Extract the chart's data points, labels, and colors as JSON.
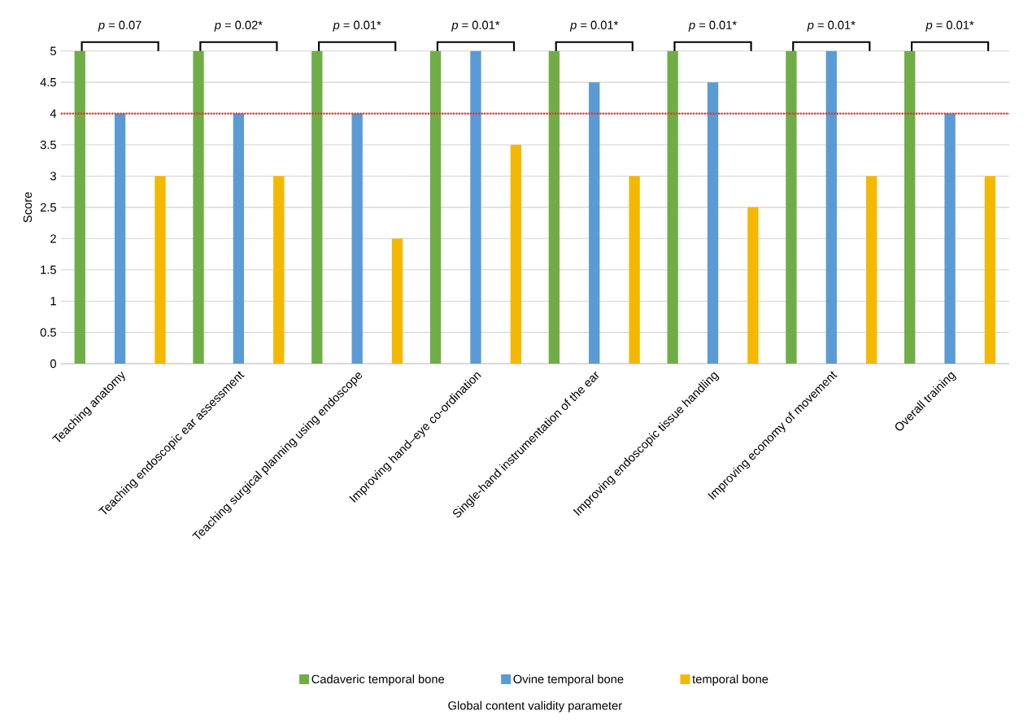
{
  "chart_data": {
    "type": "bar",
    "ylabel": "Score",
    "categories": [
      "Teaching anatomy",
      "Teaching endoscopic ear assessment",
      "Teaching surgical planning using endoscope",
      "Improving hand–eye co-ordination",
      "Single-hand instrumentation of the ear",
      "Improving endoscopic tissue handling",
      "Improving economy of movement",
      "Overall training"
    ],
    "series": [
      {
        "name": "Cadaveric temporal bone",
        "color": "#70ad47",
        "values": [
          5,
          5,
          5,
          5,
          5,
          5,
          5,
          5
        ]
      },
      {
        "name": "Ovine temporal bone",
        "color": "#5b9bd5",
        "values": [
          4,
          4,
          4,
          5,
          4.5,
          4.5,
          5,
          4
        ]
      },
      {
        "name": "temporal bone",
        "color": "#f5b800",
        "values": [
          3,
          3,
          2,
          3.5,
          3,
          2.5,
          3,
          3
        ]
      }
    ],
    "ylim": [
      0,
      5
    ],
    "yticks": [
      0,
      0.5,
      1,
      1.5,
      2,
      2.5,
      3,
      3.5,
      4,
      4.5,
      5
    ],
    "grid": "y",
    "legend": "bottom",
    "ref_lines": [
      {
        "axis": "y",
        "value": 4,
        "color": "#e03030",
        "line_style": "dotted"
      }
    ],
    "annotations": [
      "*p* = 0.07",
      "*p* = 0.02*",
      "*p* = 0.01*",
      "*p* = 0.01*",
      "*p* = 0.01*",
      "*p* = 0.01*",
      "*p* = 0.01*",
      "*p* = 0.01*",
      "Global content validity parameter"
    ]
  }
}
